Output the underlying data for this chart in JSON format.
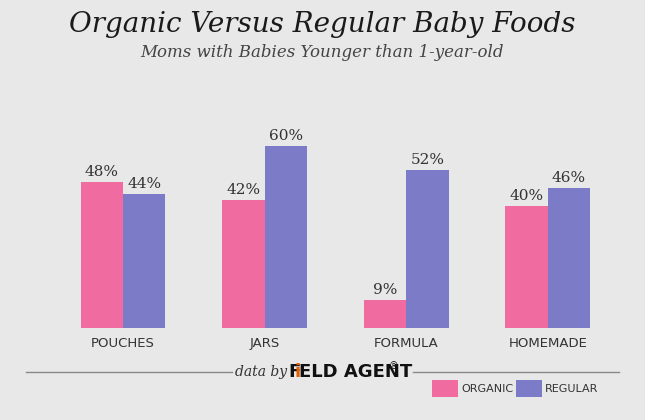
{
  "title": "Organic Versus Regular Baby Foods",
  "subtitle": "Moms with Babies Younger than 1-year-old",
  "categories": [
    "POUCHES",
    "JARS",
    "FORMULA",
    "HOMEMADE"
  ],
  "organic": [
    48,
    42,
    9,
    40
  ],
  "regular": [
    44,
    60,
    52,
    46
  ],
  "organic_color": "#F06BA0",
  "regular_color": "#7B7BC8",
  "bar_width": 0.3,
  "title_fontsize": 20,
  "subtitle_fontsize": 12,
  "xlabel_fontsize": 9.5,
  "value_fontsize": 11,
  "legend_organic": "ORGANIC",
  "legend_regular": "REGULAR",
  "ylim": [
    0,
    72
  ],
  "background_color": "#e8e8e8"
}
